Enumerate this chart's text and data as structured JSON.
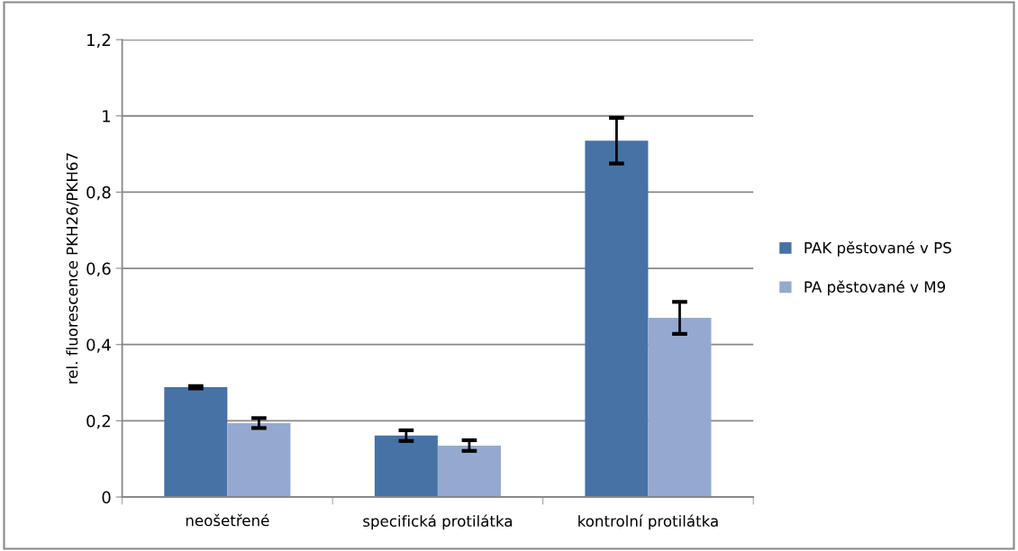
{
  "chart_data": {
    "type": "bar",
    "ylabel": "rel. fluorescence PKH26/PKH67",
    "categories": [
      "neošetřené",
      "specifická protilátka",
      "kontrolní protilátka"
    ],
    "series": [
      {
        "name": "PAK pěstované v PS",
        "color": "#4672a6",
        "values": [
          0.288,
          0.161,
          0.935
        ],
        "errors": [
          0.003,
          0.014,
          0.06
        ]
      },
      {
        "name": "PA pěstované v M9",
        "color": "#95a9d0",
        "values": [
          0.194,
          0.135,
          0.47
        ],
        "errors": [
          0.013,
          0.014,
          0.042
        ]
      }
    ],
    "ylim": [
      0,
      1.2
    ],
    "yticks": [
      0,
      {
        "value": 0.2,
        "label": "0,2"
      },
      {
        "value": 0.4,
        "label": "0,4"
      },
      {
        "value": 0.6,
        "label": "0,6"
      },
      {
        "value": 0.8,
        "label": "0,8"
      },
      1,
      {
        "value": 1.2,
        "label": "1,2"
      }
    ],
    "grid": "y",
    "legend": "right"
  }
}
